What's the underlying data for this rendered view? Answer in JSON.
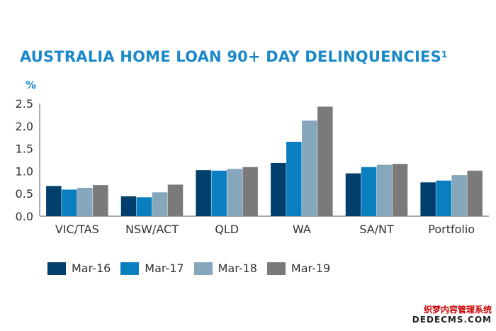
{
  "title": "AUSTRALIA HOME LOAN 90+ DAY DELINQUENCIES",
  "title_superscript": "1",
  "unit_label": "%",
  "watermark": {
    "line1": "织梦内容管理系统",
    "line2": "DEDECMS.COM"
  },
  "chart_data": {
    "type": "bar",
    "categories": [
      "VIC/TAS",
      "NSW/ACT",
      "QLD",
      "WA",
      "SA/NT",
      "Portfolio"
    ],
    "series": [
      {
        "name": "Mar-16",
        "color": "#003f6b",
        "values": [
          0.67,
          0.44,
          1.02,
          1.18,
          0.95,
          0.75
        ]
      },
      {
        "name": "Mar-17",
        "color": "#0a7fc0",
        "values": [
          0.59,
          0.42,
          1.01,
          1.65,
          1.09,
          0.79
        ]
      },
      {
        "name": "Mar-18",
        "color": "#86a6bb",
        "values": [
          0.63,
          0.53,
          1.05,
          2.12,
          1.14,
          0.91
        ]
      },
      {
        "name": "Mar-19",
        "color": "#7a7a7a",
        "values": [
          0.69,
          0.7,
          1.09,
          2.43,
          1.16,
          1.01
        ]
      }
    ],
    "yticks": [
      "0.0",
      "0.5",
      "1.0",
      "1.5",
      "2.0",
      "2.5"
    ],
    "ylim": [
      0,
      2.5
    ],
    "grid": false,
    "legend_position": "bottom"
  }
}
